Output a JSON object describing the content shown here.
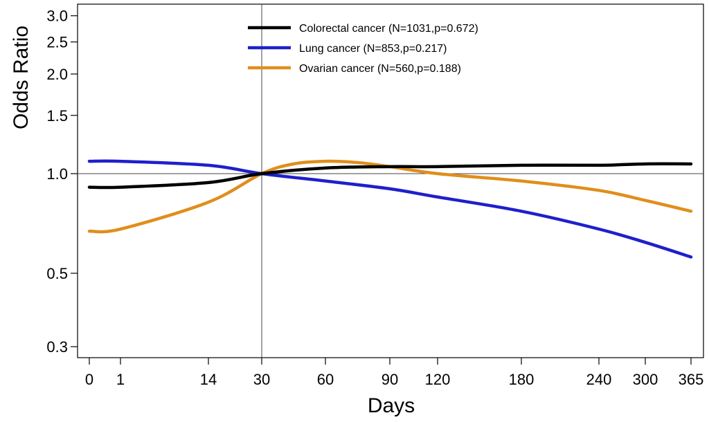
{
  "chart_data": {
    "type": "line",
    "xlabel": "Days",
    "ylabel": "Odds Ratio",
    "x_scale": "nonlinear",
    "y_scale": "log",
    "xlim": [
      0,
      365
    ],
    "ylim": [
      0.28,
      3.2
    ],
    "x_ticks": [
      0,
      1,
      14,
      30,
      60,
      90,
      120,
      180,
      240,
      300,
      365
    ],
    "x_tick_labels": [
      "0",
      "1",
      "14",
      "30",
      "60",
      "90",
      "120",
      "180",
      "240",
      "300",
      "365"
    ],
    "y_ticks": [
      0.3,
      0.5,
      1.0,
      1.5,
      2.0,
      2.5,
      3.0
    ],
    "y_tick_labels": [
      "0.3",
      "0.5",
      "1.0",
      "1.5",
      "2.0",
      "2.5",
      "3.0"
    ],
    "reference_lines": {
      "x": 30,
      "y": 1.0
    },
    "grid": false,
    "legend_position": "top-center",
    "series": [
      {
        "name": "Colorectal cancer (N=1031,p=0.672)",
        "color": "#000000",
        "x": [
          0,
          1,
          14,
          30,
          60,
          90,
          120,
          180,
          240,
          300,
          365
        ],
        "y": [
          0.91,
          0.91,
          0.94,
          1.0,
          1.04,
          1.05,
          1.05,
          1.06,
          1.06,
          1.07,
          1.07
        ]
      },
      {
        "name": "Lung cancer (N=853,p=0.217)",
        "color": "#1f1fcc",
        "x": [
          0,
          1,
          14,
          30,
          60,
          90,
          120,
          180,
          240,
          300,
          365
        ],
        "y": [
          1.09,
          1.09,
          1.06,
          1.0,
          0.95,
          0.9,
          0.85,
          0.77,
          0.68,
          0.62,
          0.56
        ]
      },
      {
        "name": "Ovarian cancer (N=560,p=0.188)",
        "color": "#e08e1b",
        "x": [
          0,
          1,
          14,
          30,
          45,
          60,
          75,
          90,
          120,
          180,
          240,
          300,
          365
        ],
        "y": [
          0.67,
          0.68,
          0.82,
          1.0,
          1.07,
          1.09,
          1.08,
          1.05,
          1.0,
          0.95,
          0.89,
          0.83,
          0.77
        ]
      }
    ]
  }
}
